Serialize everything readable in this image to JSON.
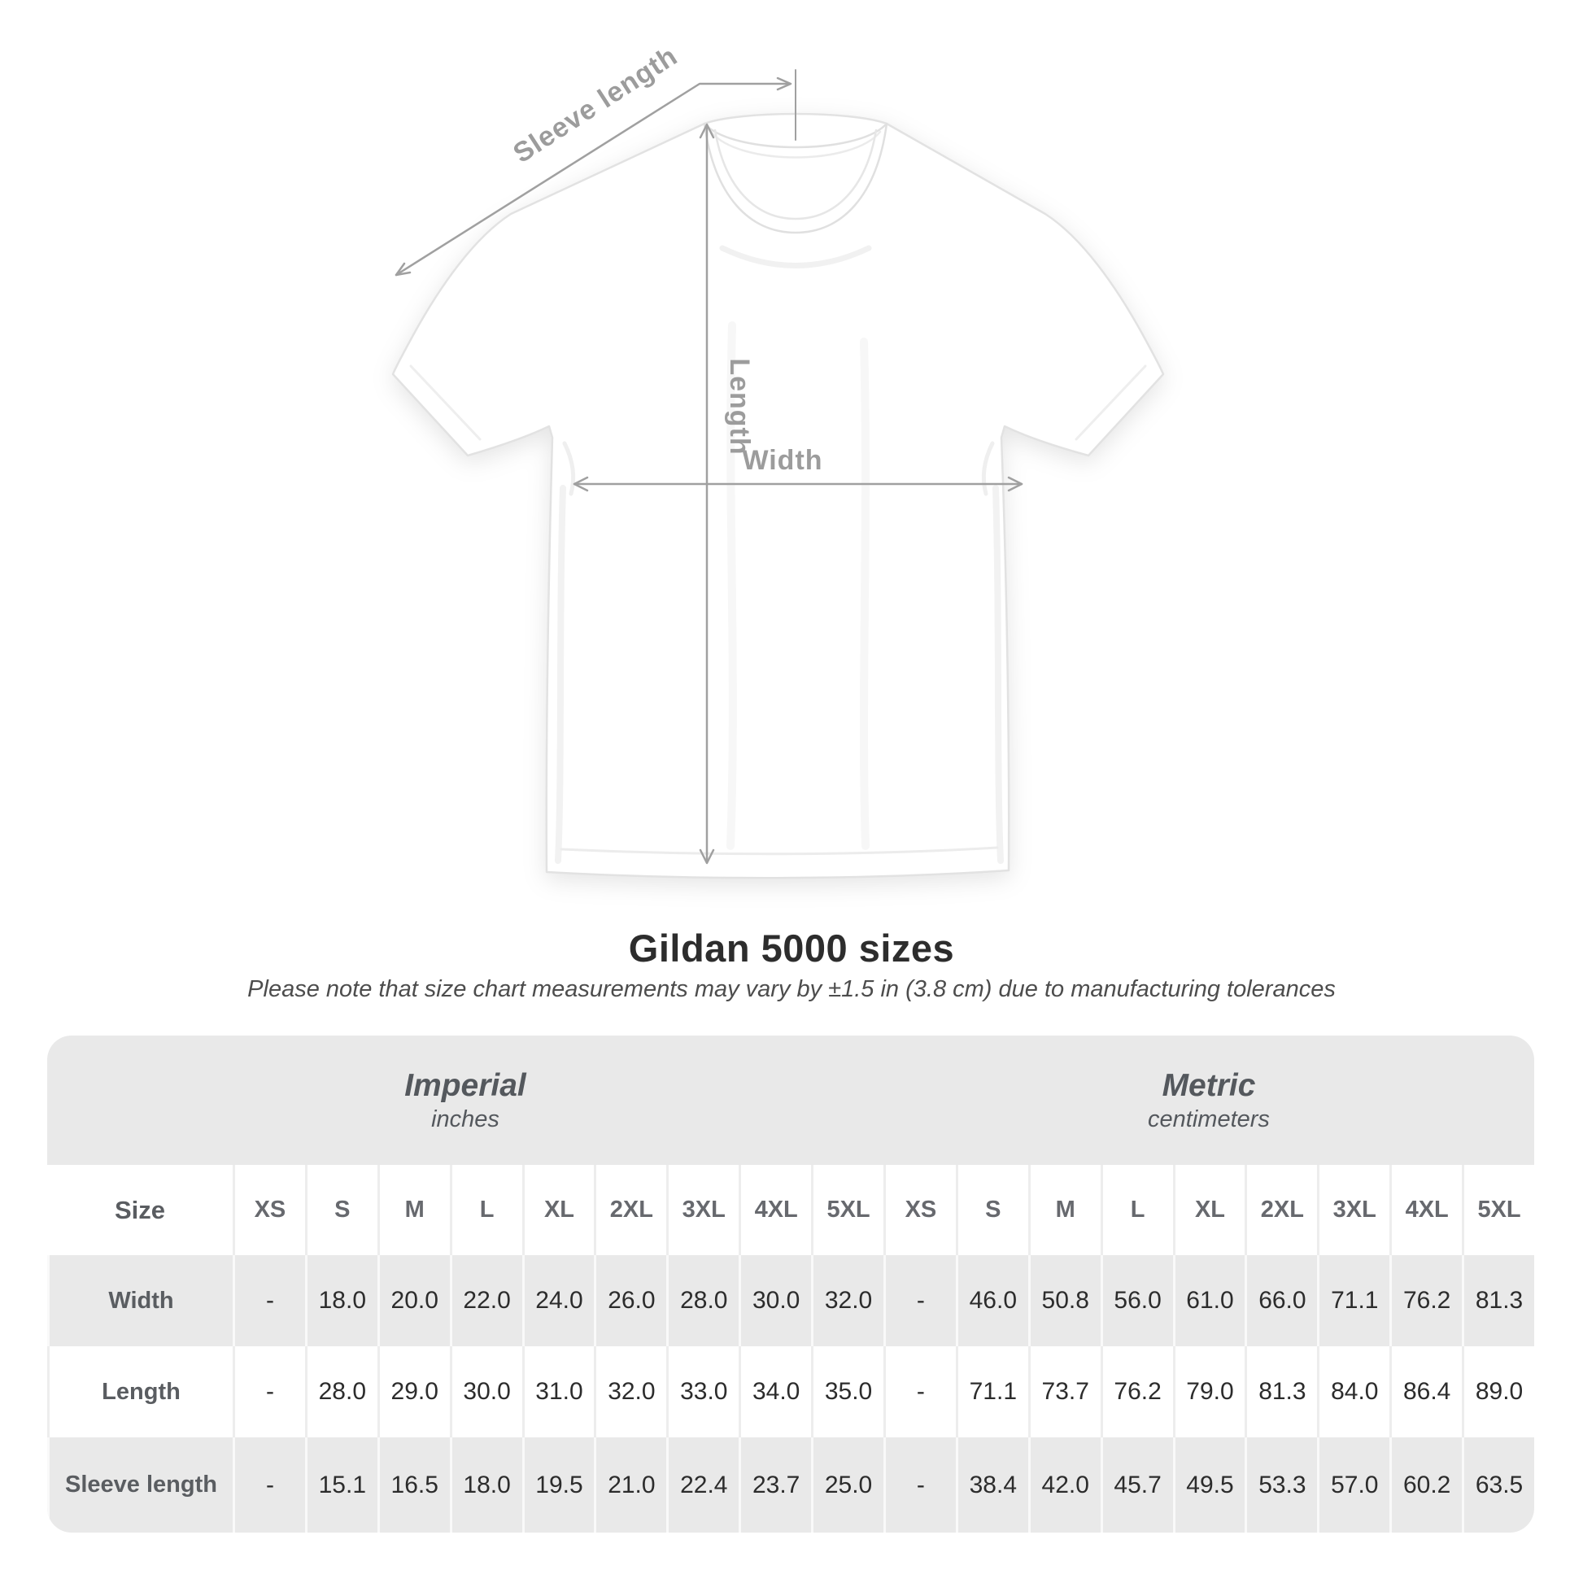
{
  "diagram": {
    "labels": {
      "sleeve_length": "Sleeve length",
      "length": "Length",
      "width": "Width"
    }
  },
  "header": {
    "title": "Gildan 5000 sizes",
    "subtitle": "Please note that size chart measurements may vary by ±1.5 in (3.8 cm) due to manufacturing tolerances"
  },
  "table": {
    "corner_label": "Size",
    "groups": [
      {
        "name": "Imperial",
        "unit": "inches"
      },
      {
        "name": "Metric",
        "unit": "centimeters"
      }
    ],
    "sizes": [
      "XS",
      "S",
      "M",
      "L",
      "XL",
      "2XL",
      "3XL",
      "4XL",
      "5XL"
    ],
    "rows": [
      {
        "label": "Width",
        "imperial": [
          "-",
          "18.0",
          "20.0",
          "22.0",
          "24.0",
          "26.0",
          "28.0",
          "30.0",
          "32.0"
        ],
        "metric": [
          "-",
          "46.0",
          "50.8",
          "56.0",
          "61.0",
          "66.0",
          "71.1",
          "76.2",
          "81.3"
        ]
      },
      {
        "label": "Length",
        "imperial": [
          "-",
          "28.0",
          "29.0",
          "30.0",
          "31.0",
          "32.0",
          "33.0",
          "34.0",
          "35.0"
        ],
        "metric": [
          "-",
          "71.1",
          "73.7",
          "76.2",
          "79.0",
          "81.3",
          "84.0",
          "86.4",
          "89.0"
        ]
      },
      {
        "label": "Sleeve length",
        "imperial": [
          "-",
          "15.1",
          "16.5",
          "18.0",
          "19.5",
          "21.0",
          "22.4",
          "23.7",
          "25.0"
        ],
        "metric": [
          "-",
          "38.4",
          "42.0",
          "45.7",
          "49.5",
          "53.3",
          "57.0",
          "60.2",
          "63.5"
        ]
      }
    ]
  },
  "colors": {
    "band_bg": "#e9e9e9",
    "annotation_gray": "#9c9c9c",
    "value_text": "#2c2c2c",
    "header_text": "#5a5d61"
  },
  "chart_data": {
    "type": "table",
    "title": "Gildan 5000 sizes",
    "columns": [
      "Size",
      "XS",
      "S",
      "M",
      "L",
      "XL",
      "2XL",
      "3XL",
      "4XL",
      "5XL"
    ],
    "imperial_inches": {
      "Width": [
        null,
        18.0,
        20.0,
        22.0,
        24.0,
        26.0,
        28.0,
        30.0,
        32.0
      ],
      "Length": [
        null,
        28.0,
        29.0,
        30.0,
        31.0,
        32.0,
        33.0,
        34.0,
        35.0
      ],
      "Sleeve length": [
        null,
        15.1,
        16.5,
        18.0,
        19.5,
        21.0,
        22.4,
        23.7,
        25.0
      ]
    },
    "metric_centimeters": {
      "Width": [
        null,
        46.0,
        50.8,
        56.0,
        61.0,
        66.0,
        71.1,
        76.2,
        81.3
      ],
      "Length": [
        null,
        71.1,
        73.7,
        76.2,
        79.0,
        81.3,
        84.0,
        86.4,
        89.0
      ],
      "Sleeve length": [
        null,
        38.4,
        42.0,
        45.7,
        49.5,
        53.3,
        57.0,
        60.2,
        63.5
      ]
    }
  }
}
